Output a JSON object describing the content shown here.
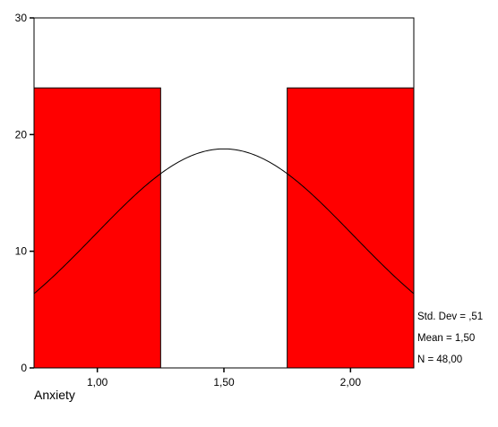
{
  "chart_data": {
    "type": "bar",
    "title": "",
    "xlabel": "Anxiety",
    "ylabel": "",
    "xlim": [
      0.75,
      2.25
    ],
    "ylim": [
      0,
      30
    ],
    "y_ticks": [
      0,
      10,
      20,
      30
    ],
    "y_tick_labels": [
      "0",
      "10",
      "20",
      "30"
    ],
    "x_ticks": [
      1.0,
      1.5,
      2.0
    ],
    "x_tick_labels": [
      "1,00",
      "1,50",
      "2,00"
    ],
    "bins": [
      {
        "start": 0.75,
        "end": 1.25,
        "value": 24
      },
      {
        "start": 1.25,
        "end": 1.75,
        "value": 0
      },
      {
        "start": 1.75,
        "end": 2.25,
        "value": 24
      }
    ],
    "normal_curve": {
      "mean": 1.5,
      "std_dev": 0.51,
      "n": 48,
      "bin_width": 0.5
    },
    "stats": [
      "Std. Dev = ,51",
      "Mean = 1,50",
      "N = 48,00"
    ],
    "grid": false,
    "colors": {
      "bar_fill": "#ff0000",
      "bar_stroke": "#000000",
      "curve": "#000000"
    }
  }
}
